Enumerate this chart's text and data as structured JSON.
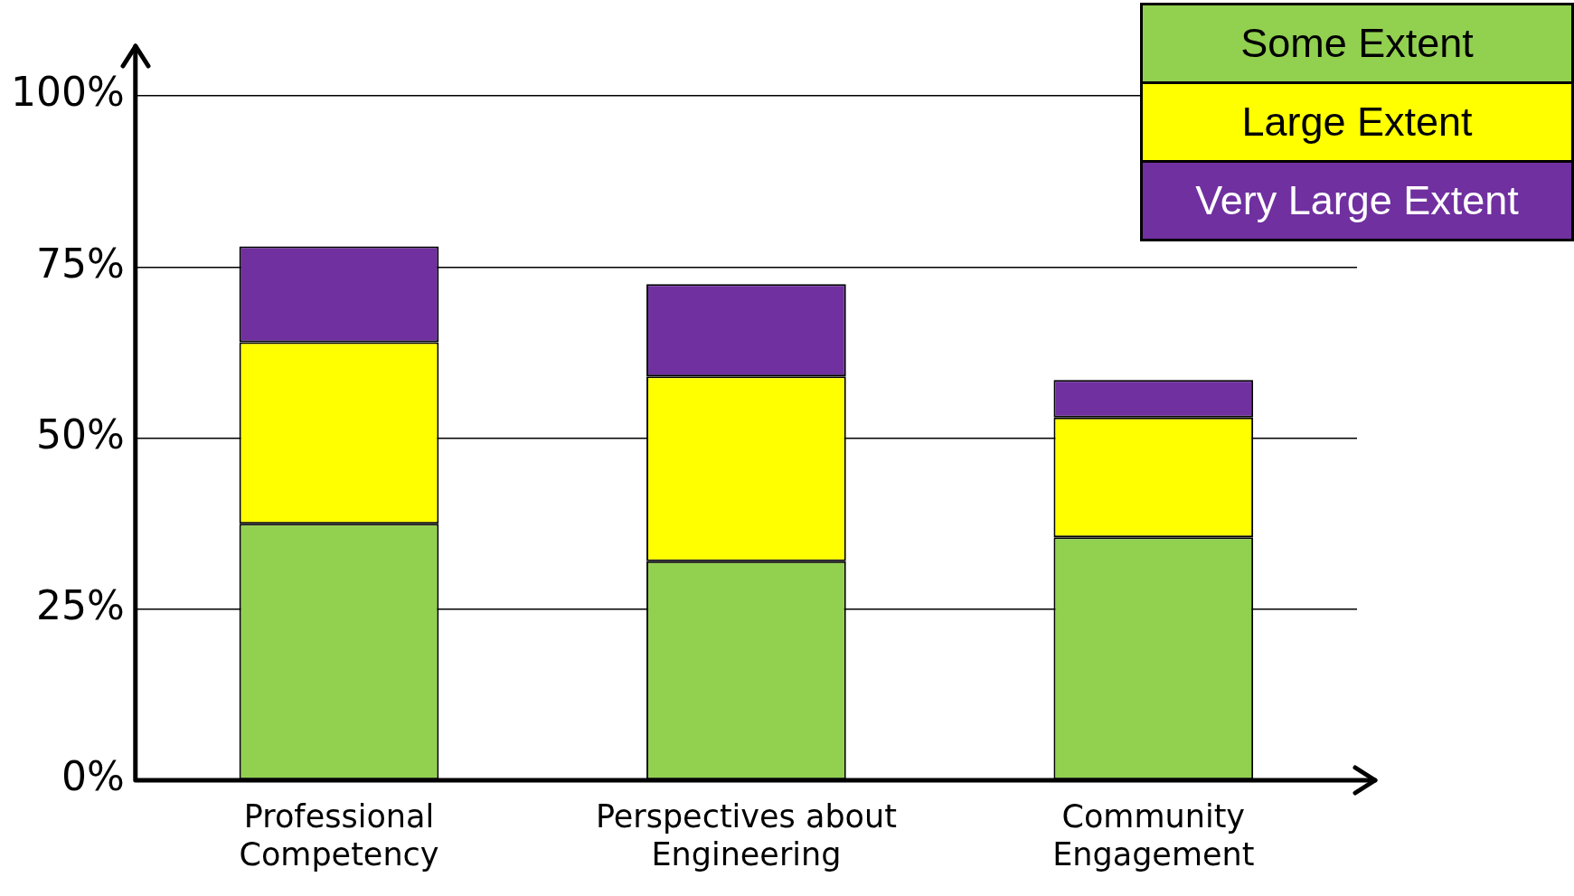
{
  "chart_data": {
    "type": "bar",
    "stacked": true,
    "categories": [
      "Professional Competency",
      "Perspectives about Engineering",
      "Community Engagement"
    ],
    "series": [
      {
        "name": "Some Extent",
        "color": "#92d050",
        "values": [
          37.5,
          32,
          35.5
        ]
      },
      {
        "name": "Large Extent",
        "color": "#ffff00",
        "values": [
          26.5,
          27,
          17.5
        ]
      },
      {
        "name": "Very Large Extent",
        "color": "#7030a0",
        "values": [
          14,
          13.5,
          5.5
        ]
      }
    ],
    "ylim": [
      0,
      100
    ],
    "yticks": [
      {
        "value": 0,
        "label": "0%"
      },
      {
        "value": 25,
        "label": "25%"
      },
      {
        "value": 50,
        "label": "50%"
      },
      {
        "value": 75,
        "label": "75%"
      },
      {
        "value": 100,
        "label": "100%"
      }
    ],
    "grid": "y",
    "legend": "top right"
  }
}
